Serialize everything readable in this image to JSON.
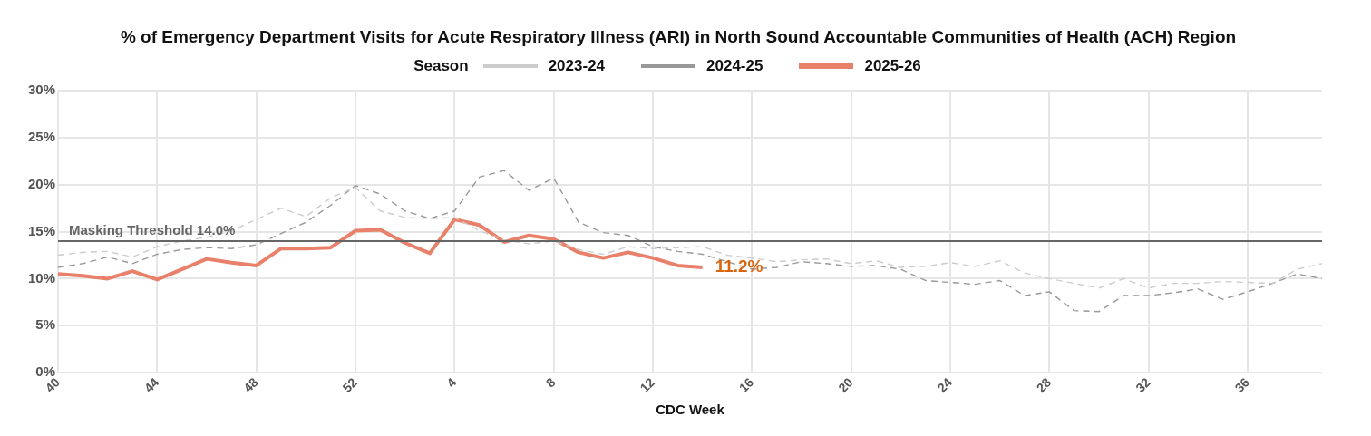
{
  "chart_data": {
    "type": "line",
    "title": "% of Emergency Department Visits for Acute Respiratory Illness (ARI) in North Sound Accountable Communities of Health (ACH) Region",
    "xlabel": "CDC Week",
    "legend_title": "Season",
    "legend": "top",
    "categories": [
      "40",
      null,
      null,
      null,
      "44",
      null,
      null,
      null,
      "48",
      null,
      null,
      null,
      "52",
      null,
      null,
      null,
      "4",
      null,
      null,
      null,
      "8",
      null,
      null,
      null,
      "12",
      null,
      null,
      null,
      "16",
      null,
      null,
      null,
      "20",
      null,
      null,
      null,
      "24",
      null,
      null,
      null,
      "28",
      null,
      null,
      null,
      "32",
      null,
      null,
      null,
      "36",
      null,
      null,
      null
    ],
    "series": [
      {
        "name": "2023-24",
        "color": "#cccccc",
        "line_style": "dashed",
        "values": [
          12.5,
          12.8,
          12.9,
          12.3,
          13.4,
          14.0,
          14.4,
          15.1,
          16.3,
          17.5,
          16.6,
          18.6,
          19.7,
          17.2,
          16.5,
          16.4,
          16.5,
          15.1,
          14.1,
          13.7,
          14.0,
          13.1,
          12.6,
          13.4,
          13.2,
          13.3,
          13.4,
          12.5,
          12.2,
          11.8,
          12.0,
          12.1,
          11.6,
          11.9,
          11.2,
          11.3,
          11.7,
          11.3,
          11.9,
          10.6,
          10.0,
          9.5,
          9.0,
          10.0,
          9.0,
          9.5,
          9.5,
          9.7,
          9.6,
          9.5,
          11.0,
          11.6
        ]
      },
      {
        "name": "2024-25",
        "color": "#999999",
        "line_style": "dashed",
        "values": [
          11.2,
          11.6,
          12.3,
          11.6,
          12.6,
          13.1,
          13.3,
          13.2,
          13.6,
          14.8,
          16.0,
          17.8,
          19.9,
          19.0,
          17.2,
          16.4,
          17.2,
          20.8,
          21.5,
          19.4,
          20.7,
          16.0,
          14.9,
          14.6,
          13.4,
          12.9,
          12.6,
          11.8,
          11.0,
          11.2,
          11.8,
          11.6,
          11.3,
          11.4,
          11.0,
          9.8,
          9.6,
          9.4,
          9.8,
          8.2,
          8.6,
          6.6,
          6.5,
          8.2,
          8.2,
          8.5,
          8.9,
          7.8,
          8.6,
          9.5,
          10.5,
          10.0
        ]
      },
      {
        "name": "2025-26",
        "color": "#e8806a",
        "line_style": "solid",
        "values": [
          10.5,
          10.3,
          10.0,
          10.8,
          9.9,
          11.0,
          12.1,
          11.7,
          11.4,
          13.2,
          13.2,
          13.3,
          15.1,
          15.2,
          13.8,
          12.7,
          16.3,
          15.7,
          13.9,
          14.6,
          14.2,
          12.8,
          12.2,
          12.8,
          12.2,
          11.4,
          11.2,
          null,
          null,
          null,
          null,
          null,
          null,
          null,
          null,
          null,
          null,
          null,
          null,
          null,
          null,
          null,
          null,
          null,
          null,
          null,
          null,
          null,
          null,
          null,
          null,
          null
        ]
      }
    ],
    "ylim": [
      0,
      30
    ],
    "yticks": [
      {
        "value": 0,
        "label": "0%"
      },
      {
        "value": 5,
        "label": "5%"
      },
      {
        "value": 10,
        "label": "10%"
      },
      {
        "value": 15,
        "label": "15%"
      },
      {
        "value": 20,
        "label": "20%"
      },
      {
        "value": 25,
        "label": "25%"
      },
      {
        "value": 30,
        "label": "30%"
      }
    ],
    "grid": true,
    "ref_lines": [
      {
        "axis": "y",
        "value": 14.0,
        "label": "Masking Threshold 14.0%",
        "color": "#666666",
        "line_style": "solid"
      }
    ],
    "annotations": [
      {
        "text": "11.2%",
        "y": 11.2
      }
    ]
  }
}
